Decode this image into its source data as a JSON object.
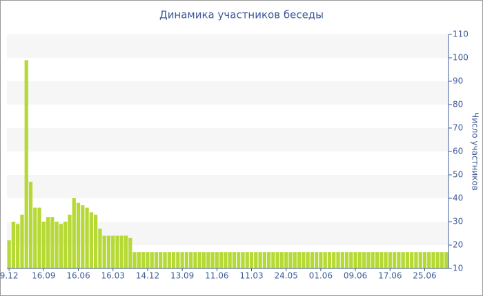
{
  "chart_data": {
    "type": "bar",
    "title": "Динамика участников беседы",
    "y_label": "Число участников",
    "categories": [
      "9.12",
      null,
      null,
      null,
      null,
      null,
      null,
      null,
      "16.09",
      null,
      null,
      null,
      null,
      null,
      null,
      null,
      "16.06",
      null,
      null,
      null,
      null,
      null,
      null,
      null,
      "16.03",
      null,
      null,
      null,
      null,
      null,
      null,
      null,
      "14.12",
      null,
      null,
      null,
      null,
      null,
      null,
      null,
      "13.09",
      null,
      null,
      null,
      null,
      null,
      null,
      null,
      "11.06",
      null,
      null,
      null,
      null,
      null,
      null,
      null,
      "11.03",
      null,
      null,
      null,
      null,
      null,
      null,
      null,
      "24.05",
      null,
      null,
      null,
      null,
      null,
      null,
      null,
      "01.06",
      null,
      null,
      null,
      null,
      null,
      null,
      null,
      "09.06",
      null,
      null,
      null,
      null,
      null,
      null,
      null,
      "17.06",
      null,
      null,
      null,
      null,
      null,
      null,
      null,
      "25.06",
      null,
      null,
      null,
      null,
      null
    ],
    "values": [
      22,
      30,
      29,
      33,
      99,
      47,
      36,
      36,
      30,
      32,
      32,
      30,
      29,
      30,
      33,
      40,
      38,
      37,
      36,
      34,
      33,
      27,
      24,
      24,
      24,
      24,
      24,
      24,
      23,
      17,
      17,
      17,
      17,
      17,
      17,
      17,
      17,
      17,
      17,
      17,
      17,
      17,
      17,
      17,
      17,
      17,
      17,
      17,
      17,
      17,
      17,
      17,
      17,
      17,
      17,
      17,
      17,
      17,
      17,
      17,
      17,
      17,
      17,
      17,
      17,
      17,
      17,
      17,
      17,
      17,
      17,
      17,
      17,
      17,
      17,
      17,
      17,
      17,
      17,
      17,
      17,
      17,
      17,
      17,
      17,
      17,
      17,
      17,
      17,
      17,
      17,
      17,
      17,
      17,
      17,
      17,
      17,
      17,
      17,
      17,
      17,
      17
    ],
    "color": "#b6d936",
    "ylim": [
      10,
      110
    ],
    "yticks": [
      10,
      20,
      30,
      40,
      50,
      60,
      70,
      80,
      90,
      100,
      110
    ],
    "grid": true,
    "y_axis_side": "right"
  }
}
